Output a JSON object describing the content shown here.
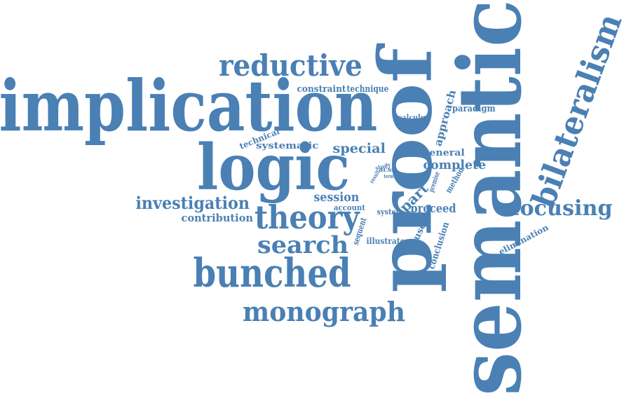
{
  "cloud": {
    "color": "#4a80b4",
    "words": [
      {
        "id": "semantic",
        "text": "semantic"
      },
      {
        "id": "proof",
        "text": "proof"
      },
      {
        "id": "implication",
        "text": "implication"
      },
      {
        "id": "logic",
        "text": "logic"
      },
      {
        "id": "bilateralism",
        "text": "bilateralism"
      },
      {
        "id": "bunched",
        "text": "bunched"
      },
      {
        "id": "theory",
        "text": "theory"
      },
      {
        "id": "reductive",
        "text": "reductive"
      },
      {
        "id": "monograph",
        "text": "monograph"
      },
      {
        "id": "search",
        "text": "search"
      },
      {
        "id": "focusing",
        "text": "focusing"
      },
      {
        "id": "investigation",
        "text": "investigation"
      },
      {
        "id": "special",
        "text": "special"
      },
      {
        "id": "complete",
        "text": "complete"
      },
      {
        "id": "session",
        "text": "session"
      },
      {
        "id": "part",
        "text": "part"
      },
      {
        "id": "proceed",
        "text": "proceed"
      },
      {
        "id": "approach",
        "text": "approach"
      },
      {
        "id": "contribution",
        "text": "contribution"
      },
      {
        "id": "constraint",
        "text": "constraint"
      },
      {
        "id": "technique",
        "text": "technique"
      },
      {
        "id": "systematic",
        "text": "systematic"
      },
      {
        "id": "general",
        "text": "general"
      },
      {
        "id": "paradigm",
        "text": "paradigm"
      },
      {
        "id": "focused",
        "text": "focused"
      },
      {
        "id": "conclusion",
        "text": "conclusion"
      },
      {
        "id": "illustrate",
        "text": "illustrate"
      },
      {
        "id": "elimination",
        "text": "elimination"
      },
      {
        "id": "calculus",
        "text": "calculus"
      },
      {
        "id": "technical",
        "text": "technical"
      },
      {
        "id": "account",
        "text": "account"
      },
      {
        "id": "system",
        "text": "system"
      },
      {
        "id": "sequent",
        "text": "sequent"
      },
      {
        "id": "method",
        "text": "method"
      },
      {
        "id": "premise",
        "text": "premise"
      },
      {
        "id": "acss",
        "text": "acss"
      },
      {
        "id": "study",
        "text": "study"
      },
      {
        "id": "result",
        "text": "result"
      },
      {
        "id": "term",
        "text": "term"
      },
      {
        "id": "tool",
        "text": "tool"
      }
    ]
  }
}
